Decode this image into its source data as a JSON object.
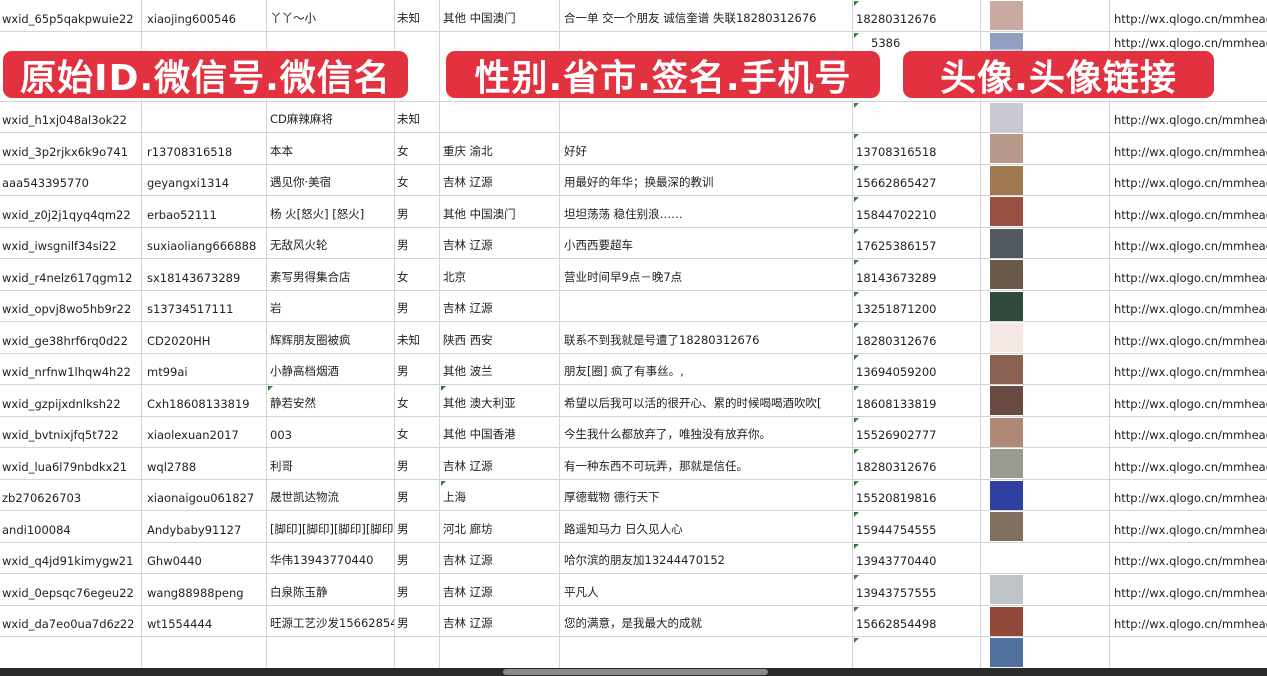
{
  "overlay_labels": [
    "原始ID.微信号.微信名",
    "性别.省市.签名.手机号",
    "头像.头像链接"
  ],
  "columns": [
    "original_id",
    "wechat_id",
    "wechat_name",
    "gender",
    "region",
    "signature",
    "phone",
    "avatar",
    "avatar_url"
  ],
  "rows": [
    {
      "id": "wxid_65p5qakpwuie22",
      "wx": "xiaojing600546",
      "name": "丫丫～小",
      "gender": "未知",
      "region": "其他 中国澳门",
      "sig": "合一单 交一个朋友 诚信奎谱 失联18280312676",
      "phone": "18280312676",
      "avatar_color": "#c9a9a0",
      "url": "http://wx.qlogo.cn/mmhead"
    },
    {
      "id": "",
      "wx": "",
      "name": "",
      "gender": "",
      "region": "",
      "sig": "",
      "phone": "5386",
      "avatar_color": "#8fa0c0",
      "url": "http://wx.qlogo.cn/mmhead"
    },
    {
      "id": "wxid_h1xj048al3ok22",
      "wx": "",
      "name": "CD麻辣麻将",
      "gender": "未知",
      "region": "",
      "sig": "",
      "phone": "",
      "avatar_color": "#c8c8d0",
      "url": "http://wx.qlogo.cn/mmhead"
    },
    {
      "id": "wxid_3p2rjkx6k9o741",
      "wx": "r13708316518",
      "name": "本本",
      "gender": "女",
      "region": "重庆 渝北",
      "sig": "好好",
      "phone": "13708316518",
      "avatar_color": "#b89888",
      "url": "http://wx.qlogo.cn/mmhead"
    },
    {
      "id": "aaa543395770",
      "wx": "geyangxi1314",
      "name": "遇见你·美宿",
      "gender": "女",
      "region": "吉林 辽源",
      "sig": "用最好的年华；换最深的教训",
      "phone": "15662865427",
      "avatar_color": "#a07850",
      "url": "http://wx.qlogo.cn/mmhead"
    },
    {
      "id": "wxid_z0j2j1qyq4qm22",
      "wx": "erbao52111",
      "name": "杨 火[怒火] [怒火]",
      "gender": "男",
      "region": "其他 中国澳门",
      "sig": "坦坦荡荡 稳住别浪……",
      "phone": "15844702210",
      "avatar_color": "#9a5040",
      "url": "http://wx.qlogo.cn/mmhead"
    },
    {
      "id": "wxid_iwsgnilf34si22",
      "wx": "suxiaoliang666888",
      "name": "无敌风火轮",
      "gender": "男",
      "region": "吉林 辽源",
      "sig": "小西西要超车",
      "phone": "17625386157",
      "avatar_color": "#505860",
      "url": "http://wx.qlogo.cn/mmhead"
    },
    {
      "id": "wxid_r4nelz617qgm12",
      "wx": "sx18143673289",
      "name": "素写男得集合店",
      "gender": "女",
      "region": "北京",
      "sig": "营业时间早9点－晚7点",
      "phone": "18143673289",
      "avatar_color": "#6a5a4a",
      "url": "http://wx.qlogo.cn/mmhead"
    },
    {
      "id": "wxid_opvj8wo5hb9r22",
      "wx": "s13734517111",
      "name": "岩",
      "gender": "男",
      "region": "吉林 辽源",
      "sig": "",
      "phone": "13251871200",
      "avatar_color": "#2f4a3a",
      "url": "http://wx.qlogo.cn/mmhead"
    },
    {
      "id": "wxid_ge38hrf6rq0d22",
      "wx": "CD2020HH",
      "name": "辉辉朋友圈被疯",
      "gender": "未知",
      "region": "陕西 西安",
      "sig": "联系不到我就是号遭了18280312676",
      "phone": "18280312676",
      "avatar_color": "#f4e8e4",
      "url": "http://wx.qlogo.cn/mmhead"
    },
    {
      "id": "wxid_nrfnw1lhqw4h22",
      "wx": "mt99ai",
      "name": "小静高档烟酒",
      "gender": "男",
      "region": "其他 波兰",
      "sig": "朋友[圈] 疯了有事丝。,",
      "phone": "13694059200",
      "avatar_color": "#8a6050",
      "url": "http://wx.qlogo.cn/mmhead"
    },
    {
      "id": "wxid_gzpijxdnlksh22",
      "wx": "Cxh18608133819",
      "name": "静若安然",
      "gender": "女",
      "region": "其他 澳大利亚",
      "sig": "希望以后我可以活的很开心、累的时候喝喝酒吹吹[",
      "phone": "18608133819",
      "avatar_color": "#6a4a40",
      "url": "http://wx.qlogo.cn/mmhead"
    },
    {
      "id": "wxid_bvtnixjfq5t722",
      "wx": "xiaolexuan2017",
      "name": "003",
      "gender": "女",
      "region": "其他 中国香港",
      "sig": "今生我什么都放弃了，唯独没有放弃你。",
      "phone": "15526902777",
      "avatar_color": "#b08878",
      "url": "http://wx.qlogo.cn/mmhead"
    },
    {
      "id": "wxid_lua6l79nbdkx21",
      "wx": "wql2788",
      "name": "利哥",
      "gender": "男",
      "region": "吉林 辽源",
      "sig": "有一种东西不可玩弄，那就是信任。",
      "phone": "18280312676",
      "avatar_color": "#9a9a90",
      "url": "http://wx.qlogo.cn/mmhead"
    },
    {
      "id": "zb270626703",
      "wx": "xiaonaigou061827",
      "name": "晟世凯达物流",
      "gender": "男",
      "region": "上海",
      "sig": "厚德载物 德行天下",
      "phone": "15520819816",
      "avatar_color": "#3040a0",
      "url": "http://wx.qlogo.cn/mmhead"
    },
    {
      "id": "andi100084",
      "wx": "Andybaby91127",
      "name": "[脚印][脚印][脚印][脚印]",
      "gender": "男",
      "region": "河北 廊坊",
      "sig": "路遥知马力 日久见人心",
      "phone": "15944754555",
      "avatar_color": "#807060",
      "url": "http://wx.qlogo.cn/mmhead"
    },
    {
      "id": "wxid_q4jd91kimygw21",
      "wx": "Ghw0440",
      "name": "华伟13943770440",
      "gender": "男",
      "region": "吉林 辽源",
      "sig": "哈尔滨的朋友加13244470152",
      "phone": "13943770440",
      "avatar_color": "#ffffff",
      "url": "http://wx.qlogo.cn/mmhead"
    },
    {
      "id": "wxid_0epsqc76egeu22",
      "wx": "wang88988peng",
      "name": "白泉陈玉静",
      "gender": "男",
      "region": "吉林 辽源",
      "sig": "平凡人",
      "phone": "13943757555",
      "avatar_color": "#c0c4c8",
      "url": "http://wx.qlogo.cn/mmhead"
    },
    {
      "id": "wxid_da7eo0ua7d6z22",
      "wx": "wt1554444",
      "name": "旺源工艺沙发15662854",
      "gender": "男",
      "region": "吉林 辽源",
      "sig": "您的满意，是我最大的成就",
      "phone": "15662854498",
      "avatar_color": "#904838",
      "url": "http://wx.qlogo.cn/mmhead"
    },
    {
      "id": "",
      "wx": "",
      "name": "",
      "gender": "",
      "region": "",
      "sig": "",
      "phone": "",
      "avatar_color": "#5070a0",
      "url": ""
    }
  ]
}
